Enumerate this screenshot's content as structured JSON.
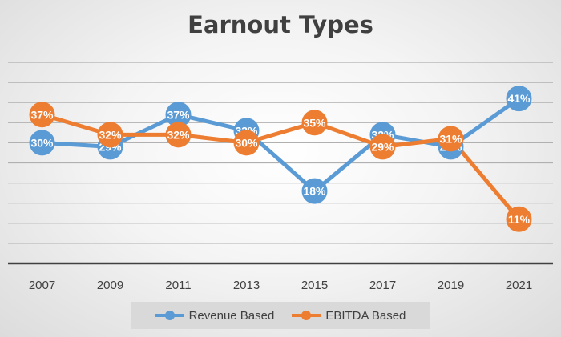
{
  "chart_data": {
    "type": "line",
    "title": "Earnout Types",
    "categories": [
      "2007",
      "2009",
      "2011",
      "2013",
      "2015",
      "2017",
      "2019",
      "2021"
    ],
    "series": [
      {
        "name": "Revenue Based",
        "color": "#5b9bd5",
        "values": [
          30,
          29,
          37,
          33,
          18,
          32,
          29,
          41
        ],
        "labels": [
          "30%",
          "29%",
          "37%",
          "33%",
          "18%",
          "32%",
          "29%",
          "41%"
        ]
      },
      {
        "name": "EBITDA Based",
        "color": "#ed7d31",
        "values": [
          37,
          32,
          32,
          30,
          35,
          29,
          31,
          11
        ],
        "labels": [
          "37%",
          "32%",
          "32%",
          "30%",
          "35%",
          "29%",
          "31%",
          "11%"
        ]
      }
    ],
    "ylim": [
      0,
      50
    ],
    "gridlines": true,
    "yaxis_labels_visible": false,
    "legend_position": "bottom"
  }
}
